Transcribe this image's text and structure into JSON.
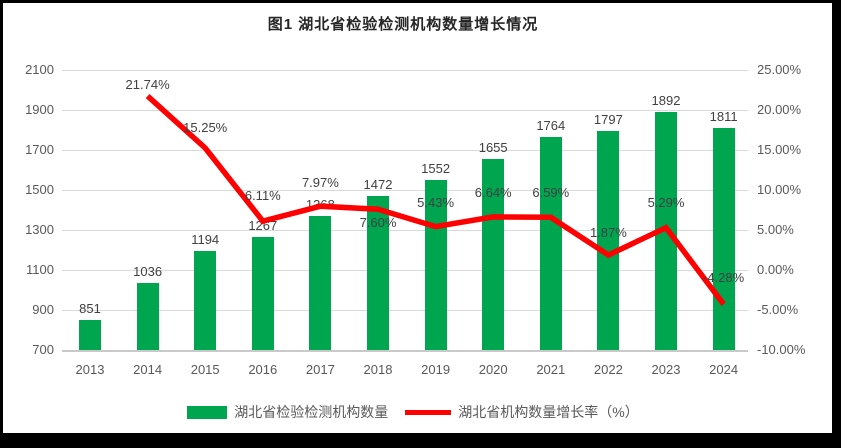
{
  "title": "图1 湖北省检验检测机构数量增长情况",
  "colors": {
    "bar": "#00A550",
    "line": "#FE0000",
    "grid": "#D9D9D9",
    "axis_text": "#595959",
    "label_text": "#404040",
    "frame": "#000000",
    "background": "#FFFFFF"
  },
  "chart_data": {
    "type": "combo-bar-line",
    "title": "图1 湖北省检验检测机构数量增长情况",
    "categories": [
      "2013",
      "2014",
      "2015",
      "2016",
      "2017",
      "2018",
      "2019",
      "2020",
      "2021",
      "2022",
      "2023",
      "2024"
    ],
    "series": [
      {
        "name": "湖北省检验检测机构数量",
        "type": "bar",
        "axis": "left",
        "values": [
          851,
          1036,
          1194,
          1267,
          1368,
          1472,
          1552,
          1655,
          1764,
          1797,
          1892,
          1811
        ],
        "data_labels": [
          "851",
          "1036",
          "1194",
          "1267",
          "1368",
          "1472",
          "1552",
          "1655",
          "1764",
          "1797",
          "1892",
          "1811"
        ]
      },
      {
        "name": "湖北省机构数量增长率（%）",
        "type": "line",
        "axis": "right",
        "values": [
          null,
          21.74,
          15.25,
          6.11,
          7.97,
          7.6,
          5.43,
          6.64,
          6.59,
          1.87,
          5.29,
          -4.28
        ],
        "data_labels": [
          "",
          "21.74%",
          "15.25%",
          "6.11%",
          "7.97%",
          "7.60%",
          "5.43%",
          "6.64%",
          "6.59%",
          "1.87%",
          "5.29%",
          "-4.28%"
        ]
      }
    ],
    "left_axis": {
      "min": 700,
      "max": 2100,
      "step": 200,
      "ticks": [
        "2100",
        "1900",
        "1700",
        "1500",
        "1300",
        "1100",
        "900",
        "700"
      ]
    },
    "right_axis": {
      "min": -10,
      "max": 25,
      "step": 5,
      "ticks": [
        "25.00%",
        "20.00%",
        "15.00%",
        "10.00%",
        "5.00%",
        "0.00%",
        "-5.00%",
        "-10.00%"
      ]
    },
    "grid": true,
    "legend_position": "bottom"
  }
}
